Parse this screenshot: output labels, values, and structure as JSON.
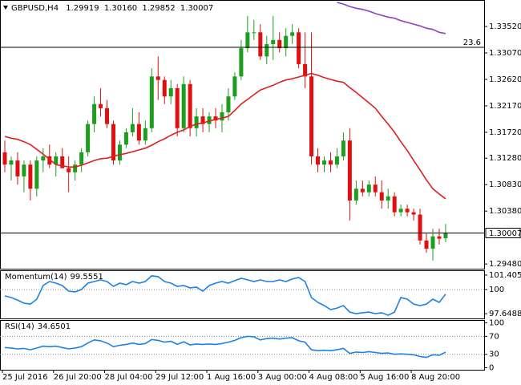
{
  "chart_data": [
    {
      "type": "candlestick",
      "title": "GBPUSD,H4",
      "title_values": [
        "1.29919",
        "1.30160",
        "1.29852",
        "1.30007"
      ],
      "categories": [
        "25 Jul 2016",
        null,
        null,
        null,
        null,
        null,
        null,
        null,
        "26 Jul 20:00",
        null,
        null,
        null,
        null,
        null,
        null,
        null,
        "28 Jul 04:00",
        null,
        null,
        null,
        null,
        null,
        null,
        null,
        "29 Jul 12:00",
        null,
        null,
        null,
        null,
        null,
        null,
        null,
        "1 Aug 16:00",
        null,
        null,
        null,
        null,
        null,
        null,
        null,
        "3 Aug 00:00",
        null,
        null,
        null,
        null,
        null,
        null,
        null,
        "4 Aug 08:00",
        null,
        null,
        null,
        null,
        null,
        null,
        null,
        "5 Aug 16:00",
        null,
        null,
        null,
        null,
        null,
        null,
        null,
        "8 Aug 20:00",
        null,
        null,
        null,
        null,
        null
      ],
      "open": [
        1.3138,
        1.3117,
        1.3124,
        1.3097,
        1.3117,
        1.3076,
        1.3124,
        1.3131,
        1.3117,
        1.3131,
        1.3111,
        1.3104,
        1.3117,
        1.3138,
        1.3186,
        1.322,
        1.3213,
        1.3186,
        1.3124,
        1.3151,
        1.3172,
        1.3186,
        1.3158,
        1.3179,
        1.3267,
        1.3261,
        1.3233,
        1.3247,
        1.3179,
        1.3254,
        1.3179,
        1.3199,
        1.3186,
        1.3199,
        1.3192,
        1.3206,
        1.3233,
        1.3267,
        1.3315,
        1.3342,
        1.3342,
        1.3301,
        1.3322,
        1.3329,
        1.3315,
        1.3336,
        1.3342,
        1.3288,
        1.3267,
        1.3131,
        1.3117,
        1.3124,
        1.3117,
        1.3131,
        1.3158,
        1.3056,
        1.3076,
        1.307,
        1.3083,
        1.307,
        1.3056,
        1.3063,
        1.3036,
        1.3042,
        1.3036,
        1.3032,
        1.2988,
        1.2974,
        1.2995,
        1.29919
      ],
      "high": [
        1.3158,
        1.3131,
        1.3138,
        1.3124,
        1.3124,
        1.3131,
        1.3145,
        1.3151,
        1.3138,
        1.3145,
        1.3131,
        1.3124,
        1.3145,
        1.3192,
        1.3233,
        1.3247,
        1.3227,
        1.3192,
        1.3158,
        1.3179,
        1.3213,
        1.3206,
        1.3192,
        1.3281,
        1.3301,
        1.3267,
        1.3261,
        1.3254,
        1.3267,
        1.3261,
        1.3213,
        1.3213,
        1.3206,
        1.3213,
        1.322,
        1.3247,
        1.3274,
        1.3329,
        1.337,
        1.3363,
        1.3356,
        1.3336,
        1.337,
        1.3342,
        1.3349,
        1.3356,
        1.3349,
        1.3342,
        1.3342,
        1.3145,
        1.3131,
        1.3138,
        1.3145,
        1.3172,
        1.3179,
        1.309,
        1.309,
        1.309,
        1.3097,
        1.309,
        1.3076,
        1.307,
        1.3049,
        1.3049,
        1.3042,
        1.3042,
        1.3001,
        1.3008,
        1.3008,
        1.3016
      ],
      "low": [
        1.3104,
        1.309,
        1.3083,
        1.307,
        1.3056,
        1.3063,
        1.3104,
        1.3111,
        1.3097,
        1.3111,
        1.307,
        1.309,
        1.3104,
        1.3131,
        1.3172,
        1.3199,
        1.3179,
        1.3117,
        1.3117,
        1.3145,
        1.3165,
        1.3151,
        1.3151,
        1.3172,
        1.3227,
        1.322,
        1.322,
        1.3165,
        1.3172,
        1.3165,
        1.3165,
        1.3172,
        1.3172,
        1.3179,
        1.3172,
        1.3192,
        1.3227,
        1.3261,
        1.3308,
        1.3329,
        1.3295,
        1.3288,
        1.3295,
        1.3308,
        1.3301,
        1.3322,
        1.3281,
        1.3247,
        1.3117,
        1.3104,
        1.3104,
        1.3104,
        1.3111,
        1.3124,
        1.3022,
        1.3049,
        1.3063,
        1.3063,
        1.3063,
        1.3042,
        1.3042,
        1.3029,
        1.3029,
        1.3029,
        1.3022,
        1.2981,
        1.2967,
        1.2954,
        1.2981,
        1.29852
      ],
      "close": [
        1.3117,
        1.3124,
        1.3097,
        1.3117,
        1.3076,
        1.3124,
        1.3131,
        1.3117,
        1.3131,
        1.3111,
        1.3104,
        1.3117,
        1.3138,
        1.3186,
        1.322,
        1.3213,
        1.3186,
        1.3124,
        1.3151,
        1.3172,
        1.3186,
        1.3158,
        1.3179,
        1.3267,
        1.3261,
        1.3233,
        1.3247,
        1.3179,
        1.3254,
        1.3179,
        1.3199,
        1.3186,
        1.3199,
        1.3192,
        1.3206,
        1.3233,
        1.3267,
        1.3315,
        1.3342,
        1.3342,
        1.3301,
        1.3322,
        1.3329,
        1.3315,
        1.3336,
        1.3342,
        1.3288,
        1.3267,
        1.3131,
        1.3117,
        1.3124,
        1.3117,
        1.3131,
        1.3158,
        1.3056,
        1.3076,
        1.307,
        1.3083,
        1.307,
        1.3056,
        1.3063,
        1.3036,
        1.3042,
        1.3036,
        1.3032,
        1.2988,
        1.2974,
        1.2995,
        1.2991,
        1.30007
      ],
      "up_color": "#1e9e1e",
      "down_color": "#e01010",
      "overlays": [
        {
          "color": "#e02020",
          "values": [
            1.3165,
            1.3162,
            1.316,
            1.3156,
            1.3151,
            1.3143,
            1.3135,
            1.3126,
            1.3117,
            1.3115,
            1.3113,
            1.3113,
            1.3116,
            1.312,
            1.3124,
            1.3127,
            1.3128,
            1.3131,
            1.3134,
            1.3136,
            1.3139,
            1.3142,
            1.3145,
            1.315,
            1.3156,
            1.3161,
            1.3167,
            1.3172,
            1.3176,
            1.3182,
            1.3186,
            1.3188,
            1.3191,
            1.3194,
            1.3196,
            1.3199,
            1.3209,
            1.322,
            1.3228,
            1.3236,
            1.3244,
            1.3248,
            1.3252,
            1.3257,
            1.3261,
            1.3263,
            1.3266,
            1.3269,
            1.3272,
            1.3269,
            1.3265,
            1.3262,
            1.3259,
            1.3257,
            1.3248,
            1.324,
            1.3231,
            1.3222,
            1.3213,
            1.3199,
            1.3186,
            1.3172,
            1.3156,
            1.3141,
            1.3124,
            1.3108,
            1.3091,
            1.3076,
            1.3067,
            1.3059
          ]
        },
        {
          "color": "#9040c8",
          "values": [
            null,
            null,
            null,
            null,
            null,
            null,
            null,
            null,
            null,
            null,
            null,
            null,
            null,
            null,
            null,
            null,
            null,
            null,
            null,
            null,
            null,
            null,
            null,
            null,
            null,
            null,
            null,
            null,
            null,
            null,
            null,
            null,
            null,
            null,
            null,
            null,
            null,
            null,
            null,
            null,
            null,
            null,
            null,
            null,
            null,
            null,
            null,
            null,
            null,
            null,
            null,
            null,
            1.3393,
            1.339,
            1.3386,
            1.3383,
            1.3381,
            1.3378,
            1.3374,
            1.3371,
            1.3368,
            1.3366,
            1.3362,
            1.3359,
            1.3356,
            1.3353,
            1.3349,
            1.3347,
            1.3342,
            1.334
          ]
        }
      ],
      "fibo": {
        "name": "23.6",
        "price": 1.33165
      },
      "ylim": [
        1.294,
        1.3397
      ],
      "yticks": [
        {
          "value": 1.3352,
          "label": "1.33520"
        },
        {
          "value": 1.3307,
          "label": "1.33070"
        },
        {
          "value": 1.3262,
          "label": "1.32620"
        },
        {
          "value": 1.3217,
          "label": "1.32170"
        },
        {
          "value": 1.3172,
          "label": "1.31720"
        },
        {
          "value": 1.3128,
          "label": "1.31280"
        },
        {
          "value": 1.3083,
          "label": "1.30830"
        },
        {
          "value": 1.3038,
          "label": "1.30380"
        },
        {
          "value": 1.2948,
          "label": "1.29480"
        }
      ]
    },
    {
      "type": "line",
      "title": "Momentum(14)",
      "color": "#1e82e0",
      "values": [
        99.38,
        99.22,
        98.98,
        98.67,
        98.59,
        99.06,
        100.39,
        100.78,
        100.62,
        100.39,
        99.84,
        99.77,
        100,
        100.62,
        100.78,
        100.94,
        100.78,
        100.31,
        100.62,
        100.47,
        100.78,
        100.62,
        100.78,
        101.33,
        101.25,
        100.78,
        100.62,
        100.31,
        100.39,
        100.16,
        100.23,
        99.84,
        100.39,
        100.62,
        100.78,
        100.62,
        100.86,
        101.09,
        100.94,
        100.78,
        100.94,
        100.78,
        100.78,
        100.94,
        100.78,
        101.02,
        101.17,
        100.78,
        99.22,
        98.75,
        98.44,
        98.05,
        98.2,
        98.44,
        97.81,
        97.66,
        97.74,
        97.81,
        97.66,
        97.74,
        97.5,
        97.81,
        99.22,
        99.06,
        98.59,
        98.44,
        98.59,
        99.06,
        98.75,
        99.5551
      ],
      "levels": [
        100
      ],
      "ylim": [
        97.19,
        101.87
      ],
      "yticks": [
        101.4053,
        100,
        97.6488
      ]
    },
    {
      "type": "line",
      "title": "RSI(14)",
      "color": "#1e82e0",
      "values": [
        45,
        44,
        42,
        43,
        40,
        44,
        48,
        47,
        48,
        45,
        42,
        44,
        47,
        55,
        62,
        60,
        55,
        47,
        50,
        52,
        55,
        52,
        54,
        63,
        61,
        57,
        59,
        52,
        58,
        51,
        53,
        52,
        53,
        52,
        54,
        57,
        61,
        67,
        70,
        69,
        62,
        65,
        66,
        64,
        66,
        67,
        60,
        57,
        40,
        38,
        39,
        38,
        40,
        43,
        32,
        35,
        34,
        36,
        34,
        32,
        33,
        30,
        31,
        30,
        29,
        25,
        23,
        29,
        28,
        34.6501
      ],
      "levels": [
        70,
        30
      ],
      "ylim": [
        -4.5,
        106.4
      ],
      "yticks": [
        100,
        70,
        30,
        0
      ]
    }
  ]
}
